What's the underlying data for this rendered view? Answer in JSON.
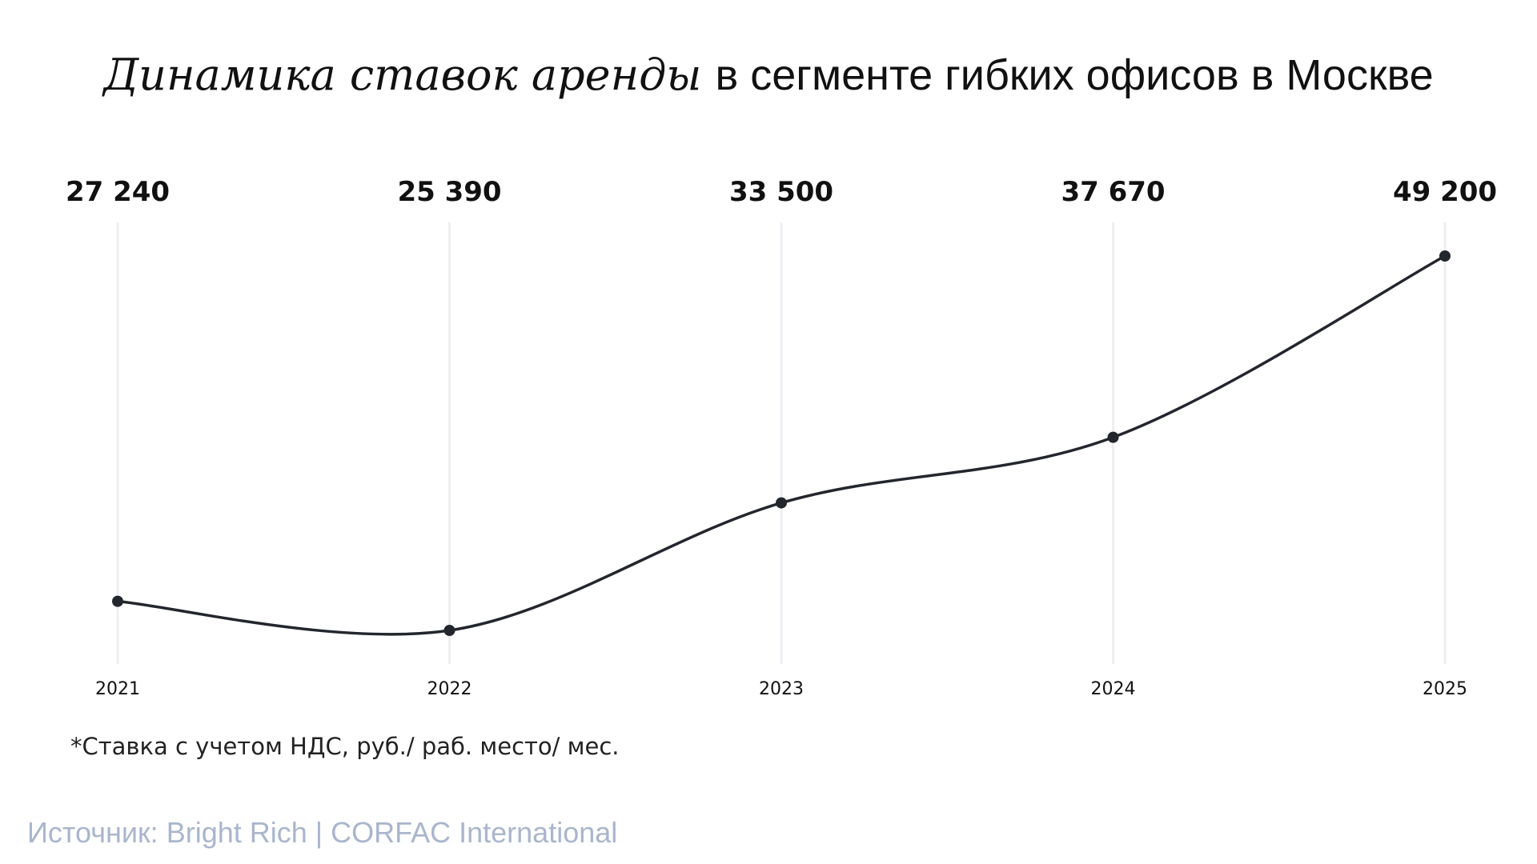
{
  "chart_data": {
    "type": "line",
    "title_italic": "Динамика ставок аренды",
    "title_rest": "в сегменте гибких офисов в Москве",
    "categories": [
      "2021",
      "2022",
      "2023",
      "2024",
      "2025"
    ],
    "values": [
      27240,
      25390,
      33500,
      37670,
      49200
    ],
    "value_labels": [
      "27 240",
      "25 390",
      "33 500",
      "37 670",
      "49 200"
    ],
    "xlabel": "",
    "ylabel": "",
    "ylim": [
      25390,
      49200
    ],
    "grid": "vertical",
    "line_color": "#24262e",
    "grid_color": "#eeeef3"
  },
  "footnote": "*Ставка с учетом НДС, руб./ раб. место/ мес.",
  "source": "Источник: Bright Rich | CORFAC International"
}
